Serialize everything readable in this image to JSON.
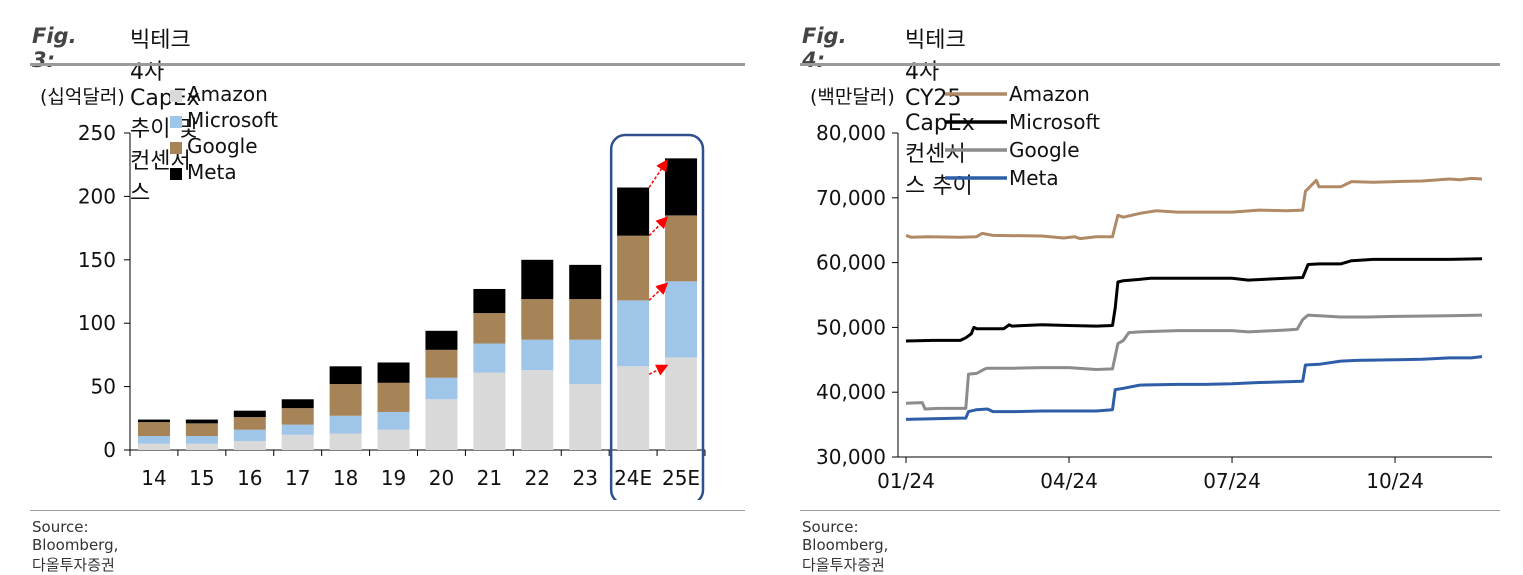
{
  "figures": [
    {
      "number": "Fig. 3:",
      "title": "빅테크4사 CapEx 추이 및 컨센서스",
      "source": "Source: Bloomberg, 다올투자증권"
    },
    {
      "number": "Fig. 4:",
      "title": "빅테크4사 CY25 CapEx 컨센서스 추이",
      "source": "Source: Bloomberg, 다올투자증권"
    }
  ],
  "colors": {
    "amazon_bar": "#d9d9d9",
    "microsoft_bar": "#9fc5e8",
    "google_bar": "#a78358",
    "meta_bar": "#000000",
    "amazon_line": "#b08a66",
    "microsoft_line": "#000000",
    "google_line": "#8c8c8c",
    "meta_line": "#2f5ea8",
    "highlight_box": "#2f4f8f",
    "arrow": "#ff0000"
  },
  "chart_data": [
    {
      "type": "bar",
      "stacked": true,
      "unit_label": "(십억달러)",
      "categories": [
        "14",
        "15",
        "16",
        "17",
        "18",
        "19",
        "20",
        "21",
        "22",
        "23",
        "24E",
        "25E"
      ],
      "series": [
        {
          "name": "Amazon",
          "values": [
            5,
            5,
            7,
            12,
            13,
            16,
            40,
            61,
            63,
            52,
            66,
            73
          ]
        },
        {
          "name": "Microsoft",
          "values": [
            6,
            6,
            9,
            8,
            14,
            14,
            17,
            23,
            24,
            35,
            52,
            60
          ]
        },
        {
          "name": "Google",
          "values": [
            11,
            10,
            10,
            13,
            25,
            23,
            22,
            24,
            32,
            32,
            51,
            52
          ]
        },
        {
          "name": "Meta",
          "values": [
            2,
            3,
            5,
            7,
            14,
            16,
            15,
            19,
            31,
            27,
            38,
            45
          ]
        }
      ],
      "ylim": [
        0,
        250
      ],
      "yticks": [
        0,
        50,
        100,
        150,
        200,
        250
      ],
      "legend_position": "top-left",
      "highlight_categories": [
        "24E",
        "25E"
      ],
      "arrows": "24E to 25E for each segment"
    },
    {
      "type": "line",
      "unit_label": "(백만달러)",
      "x_ticks": [
        "01/24",
        "04/24",
        "07/24",
        "10/24"
      ],
      "ylim": [
        30000,
        80000
      ],
      "yticks": [
        "30,000",
        "40,000",
        "50,000",
        "60,000",
        "70,000",
        "80,000"
      ],
      "legend_position": "top-left",
      "x_range_months": [
        0,
        10.6
      ],
      "series": [
        {
          "name": "Amazon",
          "points": [
            [
              0,
              64200
            ],
            [
              0.1,
              63900
            ],
            [
              0.4,
              64000
            ],
            [
              1.0,
              63900
            ],
            [
              1.3,
              64000
            ],
            [
              1.4,
              64500
            ],
            [
              1.6,
              64200
            ],
            [
              2.5,
              64100
            ],
            [
              2.9,
              63800
            ],
            [
              3.1,
              64000
            ],
            [
              3.2,
              63700
            ],
            [
              3.5,
              64000
            ],
            [
              3.8,
              64000
            ],
            [
              3.9,
              67300
            ],
            [
              4.0,
              67000
            ],
            [
              4.3,
              67600
            ],
            [
              4.6,
              68000
            ],
            [
              5.0,
              67800
            ],
            [
              6.0,
              67800
            ],
            [
              6.5,
              68100
            ],
            [
              7.0,
              68000
            ],
            [
              7.3,
              68100
            ],
            [
              7.35,
              71000
            ],
            [
              7.55,
              72700
            ],
            [
              7.6,
              71700
            ],
            [
              8.0,
              71700
            ],
            [
              8.2,
              72500
            ],
            [
              8.6,
              72400
            ],
            [
              9.0,
              72500
            ],
            [
              9.5,
              72600
            ],
            [
              10.0,
              72900
            ],
            [
              10.2,
              72800
            ],
            [
              10.4,
              73000
            ],
            [
              10.6,
              72900
            ]
          ]
        },
        {
          "name": "Microsoft",
          "points": [
            [
              0,
              47900
            ],
            [
              0.5,
              48000
            ],
            [
              1.0,
              48000
            ],
            [
              1.1,
              48400
            ],
            [
              1.2,
              49000
            ],
            [
              1.25,
              50000
            ],
            [
              1.3,
              49800
            ],
            [
              1.8,
              49800
            ],
            [
              1.9,
              50400
            ],
            [
              1.95,
              50200
            ],
            [
              2.5,
              50400
            ],
            [
              3.0,
              50300
            ],
            [
              3.5,
              50200
            ],
            [
              3.8,
              50300
            ],
            [
              3.85,
              53000
            ],
            [
              3.9,
              57000
            ],
            [
              4.0,
              57200
            ],
            [
              4.3,
              57400
            ],
            [
              4.5,
              57600
            ],
            [
              5.0,
              57600
            ],
            [
              6.0,
              57600
            ],
            [
              6.3,
              57300
            ],
            [
              7.0,
              57600
            ],
            [
              7.3,
              57700
            ],
            [
              7.4,
              59700
            ],
            [
              7.6,
              59800
            ],
            [
              8.0,
              59800
            ],
            [
              8.2,
              60300
            ],
            [
              8.6,
              60500
            ],
            [
              9.0,
              60500
            ],
            [
              10.0,
              60500
            ],
            [
              10.6,
              60600
            ]
          ]
        },
        {
          "name": "Google",
          "points": [
            [
              0,
              38300
            ],
            [
              0.3,
              38400
            ],
            [
              0.35,
              37400
            ],
            [
              0.6,
              37500
            ],
            [
              0.8,
              37500
            ],
            [
              1.1,
              37500
            ],
            [
              1.15,
              42800
            ],
            [
              1.3,
              42900
            ],
            [
              1.45,
              43600
            ],
            [
              1.5,
              43700
            ],
            [
              2.0,
              43700
            ],
            [
              2.5,
              43800
            ],
            [
              3.0,
              43800
            ],
            [
              3.5,
              43500
            ],
            [
              3.8,
              43600
            ],
            [
              3.9,
              47500
            ],
            [
              4.0,
              48000
            ],
            [
              4.1,
              49200
            ],
            [
              4.3,
              49300
            ],
            [
              5.0,
              49500
            ],
            [
              5.5,
              49500
            ],
            [
              6.0,
              49500
            ],
            [
              6.3,
              49300
            ],
            [
              7.0,
              49600
            ],
            [
              7.2,
              49700
            ],
            [
              7.3,
              51200
            ],
            [
              7.4,
              51900
            ],
            [
              7.6,
              51800
            ],
            [
              8.0,
              51600
            ],
            [
              8.5,
              51600
            ],
            [
              9.0,
              51700
            ],
            [
              10.0,
              51800
            ],
            [
              10.6,
              51900
            ]
          ]
        },
        {
          "name": "Meta",
          "points": [
            [
              0,
              35800
            ],
            [
              0.5,
              35900
            ],
            [
              1.0,
              36000
            ],
            [
              1.1,
              36000
            ],
            [
              1.15,
              37000
            ],
            [
              1.3,
              37300
            ],
            [
              1.5,
              37400
            ],
            [
              1.6,
              37000
            ],
            [
              2.0,
              37000
            ],
            [
              2.5,
              37100
            ],
            [
              3.0,
              37100
            ],
            [
              3.5,
              37100
            ],
            [
              3.8,
              37300
            ],
            [
              3.85,
              40400
            ],
            [
              4.0,
              40600
            ],
            [
              4.3,
              41100
            ],
            [
              5.0,
              41200
            ],
            [
              5.5,
              41200
            ],
            [
              6.0,
              41300
            ],
            [
              6.5,
              41500
            ],
            [
              7.0,
              41600
            ],
            [
              7.3,
              41700
            ],
            [
              7.35,
              44200
            ],
            [
              7.6,
              44300
            ],
            [
              8.0,
              44800
            ],
            [
              8.3,
              44900
            ],
            [
              9.0,
              45000
            ],
            [
              9.5,
              45100
            ],
            [
              10.0,
              45300
            ],
            [
              10.4,
              45300
            ],
            [
              10.6,
              45500
            ]
          ]
        }
      ]
    }
  ]
}
